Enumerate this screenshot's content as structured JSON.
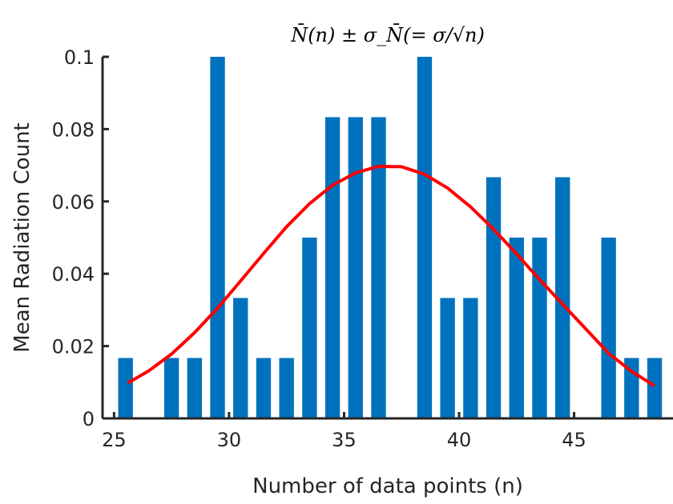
{
  "chart_data": {
    "type": "bar",
    "title": "N̄(n) ± σ_N̄(= σ/√n)",
    "xlabel": "Number of data points (n)",
    "ylabel": "Mean Radiation Count",
    "xlim": [
      24.5,
      49.3
    ],
    "ylim": [
      0,
      0.1
    ],
    "xticks": [
      25,
      30,
      35,
      40,
      45
    ],
    "yticks": [
      0,
      0.02,
      0.04,
      0.06,
      0.08,
      0.1
    ],
    "xtick_labels": [
      "25",
      "30",
      "35",
      "40",
      "45"
    ],
    "ytick_labels": [
      "0",
      "0.02",
      "0.04",
      "0.06",
      "0.08",
      "0.1"
    ],
    "grid": false,
    "bars": {
      "x": [
        25.5,
        27.5,
        28.5,
        29.5,
        30.5,
        31.5,
        32.5,
        33.5,
        34.5,
        35.5,
        36.5,
        38.5,
        39.5,
        40.5,
        41.5,
        42.5,
        43.5,
        44.5,
        46.5,
        47.5,
        48.5
      ],
      "values": [
        0.0167,
        0.0167,
        0.0167,
        0.1,
        0.0333,
        0.0167,
        0.0167,
        0.05,
        0.0833,
        0.0833,
        0.0833,
        0.1,
        0.0333,
        0.0333,
        0.0667,
        0.05,
        0.05,
        0.0667,
        0.05,
        0.0167,
        0.0167
      ],
      "color": "#0072BD"
    },
    "curve": {
      "x": [
        25.6,
        26.5,
        27.5,
        28.5,
        29.5,
        30.5,
        31.5,
        32.5,
        33.5,
        34.5,
        35.5,
        36.5,
        37.5,
        38.5,
        39.5,
        40.5,
        41.5,
        42.5,
        43.5,
        44.5,
        45.5,
        46.5,
        47.5,
        48.5
      ],
      "y": [
        0.0098,
        0.0131,
        0.0178,
        0.0237,
        0.0305,
        0.038,
        0.0456,
        0.053,
        0.0594,
        0.0645,
        0.0679,
        0.0697,
        0.0696,
        0.0675,
        0.0637,
        0.0585,
        0.0523,
        0.0455,
        0.0384,
        0.0316,
        0.0248,
        0.018,
        0.013,
        0.009
      ],
      "color": "#FF0000"
    }
  }
}
